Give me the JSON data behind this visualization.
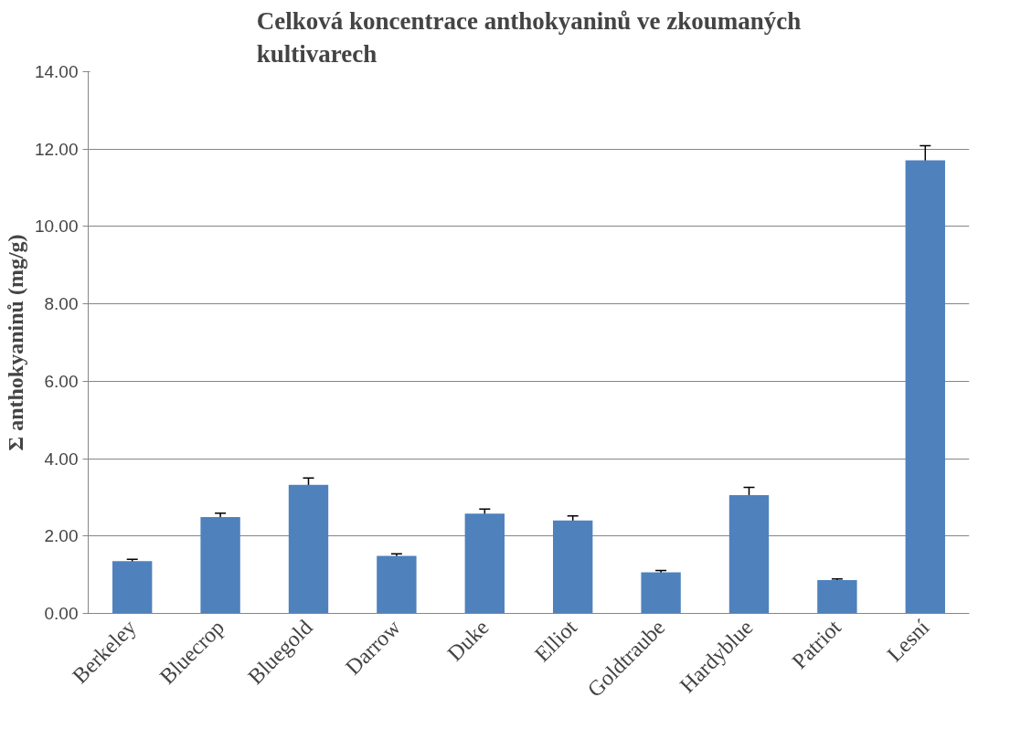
{
  "chart_data": {
    "type": "bar",
    "title": "Celková koncentrace anthokyaninů ve zkoumaných kultivarech",
    "ylabel": "Σ anthokyaninů (mg/g)",
    "categories": [
      "Berkeley",
      "Bluecrop",
      "Bluegold",
      "Darrow",
      "Duke",
      "Elliot",
      "Goldtraube",
      "Hardyblue",
      "Patriot",
      "Lesní"
    ],
    "values": [
      1.35,
      2.49,
      3.32,
      1.49,
      2.58,
      2.4,
      1.06,
      3.06,
      0.86,
      11.71
    ],
    "errors": [
      0.05,
      0.1,
      0.18,
      0.05,
      0.12,
      0.12,
      0.05,
      0.2,
      0.03,
      0.38
    ],
    "color": "#4f81bd",
    "ylim": [
      0,
      14
    ],
    "yticks": [
      {
        "value": 0,
        "label": "0.00"
      },
      {
        "value": 2,
        "label": "2.00"
      },
      {
        "value": 4,
        "label": "4.00"
      },
      {
        "value": 6,
        "label": "6.00"
      },
      {
        "value": 8,
        "label": "8.00"
      },
      {
        "value": 10,
        "label": "10.00"
      },
      {
        "value": 12,
        "label": "12.00"
      },
      {
        "value": 14,
        "label": "14.00"
      }
    ],
    "grid": "y"
  }
}
